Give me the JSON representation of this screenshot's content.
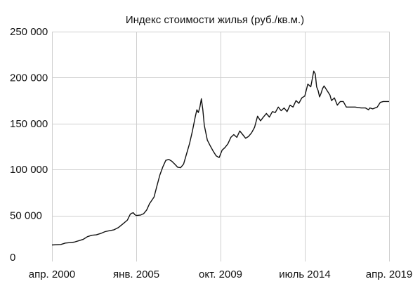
{
  "chart_data": {
    "type": "line",
    "title": "Индекс стоимости жилья (руб./кв.м.)",
    "xlabel": "",
    "ylabel": "",
    "x_ticks": [
      {
        "date": "2000-04-01",
        "label": "апр. 2000"
      },
      {
        "date": "2005-01-01",
        "label": "янв. 2005"
      },
      {
        "date": "2009-10-01",
        "label": "окт. 2009"
      },
      {
        "date": "2014-07-01",
        "label": "июль 2014"
      },
      {
        "date": "2019-04-01",
        "label": "апр. 2019"
      }
    ],
    "y_ticks": [
      {
        "value": 0,
        "label": "0"
      },
      {
        "value": 50000,
        "label": "50 000"
      },
      {
        "value": 100000,
        "label": "100 000"
      },
      {
        "value": 150000,
        "label": "150 000"
      },
      {
        "value": 200000,
        "label": "200 000"
      },
      {
        "value": 250000,
        "label": "250 000"
      }
    ],
    "ylim": [
      0,
      250000
    ],
    "xlim": [
      "2000-04-01",
      "2019-04-01"
    ],
    "grid": true,
    "line_color": "#111111",
    "grid_color": "#cfcfcf",
    "series": [
      {
        "points": [
          [
            "2000-04-01",
            18000
          ],
          [
            "2000-10-01",
            18500
          ],
          [
            "2001-01-01",
            20000
          ],
          [
            "2001-04-01",
            20500
          ],
          [
            "2001-07-01",
            21000
          ],
          [
            "2001-10-01",
            22500
          ],
          [
            "2002-01-01",
            24000
          ],
          [
            "2002-04-01",
            27000
          ],
          [
            "2002-07-01",
            28500
          ],
          [
            "2002-10-01",
            29000
          ],
          [
            "2003-01-01",
            30500
          ],
          [
            "2003-04-01",
            32500
          ],
          [
            "2003-07-01",
            33500
          ],
          [
            "2003-10-01",
            34500
          ],
          [
            "2004-01-01",
            37000
          ],
          [
            "2004-04-01",
            41000
          ],
          [
            "2004-07-01",
            45000
          ],
          [
            "2004-09-01",
            51500
          ],
          [
            "2004-10-01",
            52500
          ],
          [
            "2004-11-01",
            53000
          ],
          [
            "2004-12-01",
            51000
          ],
          [
            "2005-01-01",
            50000
          ],
          [
            "2005-04-01",
            50500
          ],
          [
            "2005-06-01",
            52000
          ],
          [
            "2005-08-01",
            56000
          ],
          [
            "2005-10-01",
            63000
          ],
          [
            "2006-01-01",
            70000
          ],
          [
            "2006-03-01",
            82000
          ],
          [
            "2006-05-01",
            94000
          ],
          [
            "2006-07-01",
            103000
          ],
          [
            "2006-09-01",
            110000
          ],
          [
            "2006-11-01",
            111000
          ],
          [
            "2007-01-01",
            109000
          ],
          [
            "2007-03-01",
            106000
          ],
          [
            "2007-05-01",
            102500
          ],
          [
            "2007-07-01",
            102000
          ],
          [
            "2007-09-01",
            106000
          ],
          [
            "2007-11-01",
            117000
          ],
          [
            "2008-01-01",
            128000
          ],
          [
            "2008-03-01",
            142000
          ],
          [
            "2008-05-01",
            158000
          ],
          [
            "2008-06-01",
            165000
          ],
          [
            "2008-07-01",
            162000
          ],
          [
            "2008-08-01",
            168000
          ],
          [
            "2008-09-01",
            177000
          ],
          [
            "2008-10-01",
            165000
          ],
          [
            "2008-11-01",
            148000
          ],
          [
            "2009-01-01",
            132000
          ],
          [
            "2009-03-01",
            126000
          ],
          [
            "2009-05-01",
            120000
          ],
          [
            "2009-07-01",
            115000
          ],
          [
            "2009-09-01",
            113000
          ],
          [
            "2009-11-01",
            121000
          ],
          [
            "2010-01-01",
            124000
          ],
          [
            "2010-03-01",
            128000
          ],
          [
            "2010-05-01",
            135000
          ],
          [
            "2010-07-01",
            138000
          ],
          [
            "2010-09-01",
            135000
          ],
          [
            "2010-11-01",
            142000
          ],
          [
            "2011-01-01",
            138000
          ],
          [
            "2011-03-01",
            134000
          ],
          [
            "2011-05-01",
            136000
          ],
          [
            "2011-07-01",
            140000
          ],
          [
            "2011-09-01",
            146000
          ],
          [
            "2011-11-01",
            158000
          ],
          [
            "2012-01-01",
            153000
          ],
          [
            "2012-03-01",
            157000
          ],
          [
            "2012-05-01",
            161000
          ],
          [
            "2012-07-01",
            157000
          ],
          [
            "2012-09-01",
            163000
          ],
          [
            "2012-11-01",
            162000
          ],
          [
            "2013-01-01",
            168000
          ],
          [
            "2013-03-01",
            164000
          ],
          [
            "2013-05-01",
            167000
          ],
          [
            "2013-07-01",
            163000
          ],
          [
            "2013-09-01",
            170000
          ],
          [
            "2013-11-01",
            168000
          ],
          [
            "2014-01-01",
            175000
          ],
          [
            "2014-03-01",
            172000
          ],
          [
            "2014-05-01",
            178000
          ],
          [
            "2014-07-01",
            180000
          ],
          [
            "2014-09-01",
            193000
          ],
          [
            "2014-11-01",
            190000
          ],
          [
            "2015-01-01",
            207000
          ],
          [
            "2015-02-01",
            204000
          ],
          [
            "2015-03-01",
            190000
          ],
          [
            "2015-04-01",
            186000
          ],
          [
            "2015-05-01",
            179000
          ],
          [
            "2015-06-01",
            183000
          ],
          [
            "2015-07-01",
            188000
          ],
          [
            "2015-08-01",
            191000
          ],
          [
            "2015-10-01",
            186000
          ],
          [
            "2015-12-01",
            181000
          ],
          [
            "2016-01-01",
            175000
          ],
          [
            "2016-03-01",
            178000
          ],
          [
            "2016-05-01",
            170000
          ],
          [
            "2016-07-01",
            174000
          ],
          [
            "2016-09-01",
            174000
          ],
          [
            "2016-11-01",
            168000
          ],
          [
            "2017-01-01",
            168000
          ],
          [
            "2017-05-01",
            168000
          ],
          [
            "2017-09-01",
            167000
          ],
          [
            "2017-12-01",
            167000
          ],
          [
            "2018-02-01",
            165000
          ],
          [
            "2018-03-01",
            167000
          ],
          [
            "2018-05-01",
            166000
          ],
          [
            "2018-08-01",
            168000
          ],
          [
            "2018-10-01",
            173000
          ],
          [
            "2018-12-01",
            174000
          ],
          [
            "2019-04-01",
            174000
          ]
        ]
      }
    ]
  }
}
